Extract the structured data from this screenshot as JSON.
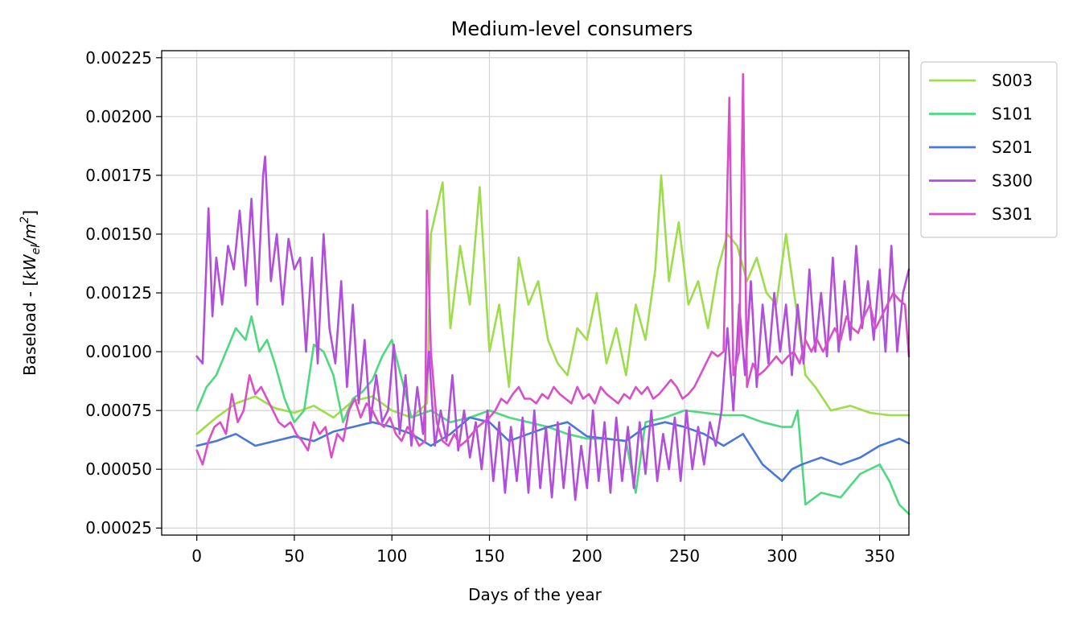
{
  "chart_data": {
    "type": "line",
    "title": "Medium-level consumers",
    "xlabel": "Days of the year",
    "ylabel_prefix": "Baseload - [",
    "ylabel_unit_main": "kW",
    "ylabel_unit_sub": "el",
    "ylabel_unit_rest": "/m",
    "ylabel_unit_sup": "2",
    "ylabel_suffix": "]",
    "xlim": [
      -18,
      365
    ],
    "ylim": [
      0.00022,
      0.00228
    ],
    "xticks": [
      0,
      50,
      100,
      150,
      200,
      250,
      300,
      350
    ],
    "xtick_labels": [
      "0",
      "50",
      "100",
      "150",
      "200",
      "250",
      "300",
      "350"
    ],
    "yticks": [
      0.00025,
      0.0005,
      0.00075,
      0.001,
      0.00125,
      0.0015,
      0.00175,
      0.002,
      0.00225
    ],
    "ytick_labels": [
      "0.00025",
      "0.00050",
      "0.00075",
      "0.00100",
      "0.00125",
      "0.00150",
      "0.00175",
      "0.00200",
      "0.00225"
    ],
    "grid": true,
    "legend_position": "outside top-right",
    "series": [
      {
        "name": "S003",
        "color": "#9edd4a",
        "x": [
          0,
          10,
          20,
          30,
          40,
          50,
          60,
          70,
          80,
          90,
          100,
          110,
          118,
          120,
          126,
          130,
          135,
          140,
          145,
          150,
          155,
          160,
          165,
          170,
          175,
          180,
          185,
          190,
          195,
          200,
          205,
          210,
          215,
          220,
          225,
          230,
          235,
          238,
          242,
          247,
          252,
          257,
          262,
          267,
          272,
          277,
          282,
          287,
          292,
          297,
          302,
          307,
          312,
          317,
          325,
          335,
          345,
          355,
          365
        ],
        "y": [
          0.00065,
          0.00072,
          0.00078,
          0.00081,
          0.00076,
          0.00074,
          0.00077,
          0.00072,
          0.00079,
          0.00081,
          0.00075,
          0.00072,
          0.00078,
          0.0015,
          0.00172,
          0.0011,
          0.00145,
          0.0012,
          0.0017,
          0.001,
          0.0012,
          0.00085,
          0.0014,
          0.0012,
          0.0013,
          0.00105,
          0.00095,
          0.0009,
          0.0011,
          0.00105,
          0.00125,
          0.00095,
          0.0011,
          0.0009,
          0.0012,
          0.00105,
          0.00135,
          0.00175,
          0.0013,
          0.00155,
          0.0012,
          0.0013,
          0.0011,
          0.00135,
          0.0015,
          0.00145,
          0.0013,
          0.0014,
          0.00125,
          0.0012,
          0.0015,
          0.0012,
          0.0009,
          0.00085,
          0.00075,
          0.00077,
          0.00074,
          0.00073,
          0.00073
        ]
      },
      {
        "name": "S101",
        "color": "#4cd97f",
        "x": [
          0,
          5,
          10,
          15,
          20,
          25,
          28,
          32,
          36,
          40,
          45,
          50,
          55,
          60,
          65,
          70,
          75,
          80,
          85,
          90,
          95,
          100,
          110,
          120,
          130,
          140,
          150,
          160,
          170,
          180,
          190,
          200,
          210,
          220,
          225,
          230,
          240,
          250,
          260,
          270,
          280,
          290,
          300,
          305,
          308,
          312,
          320,
          330,
          340,
          350,
          355,
          360,
          365
        ],
        "y": [
          0.00075,
          0.00085,
          0.0009,
          0.001,
          0.0011,
          0.00105,
          0.00115,
          0.001,
          0.00105,
          0.00095,
          0.0008,
          0.0007,
          0.00075,
          0.00103,
          0.001,
          0.0009,
          0.0007,
          0.0008,
          0.00083,
          0.00088,
          0.00098,
          0.00105,
          0.00072,
          0.00075,
          0.0007,
          0.00072,
          0.00075,
          0.00072,
          0.0007,
          0.00068,
          0.00065,
          0.00063,
          0.00063,
          0.00062,
          0.0004,
          0.0007,
          0.00072,
          0.00075,
          0.00074,
          0.00073,
          0.00073,
          0.0007,
          0.00068,
          0.00068,
          0.00075,
          0.00035,
          0.0004,
          0.00038,
          0.00048,
          0.00052,
          0.00045,
          0.00035,
          0.00031
        ]
      },
      {
        "name": "S201",
        "color": "#4a78d9",
        "x": [
          0,
          10,
          20,
          30,
          40,
          50,
          60,
          70,
          80,
          90,
          100,
          110,
          120,
          130,
          140,
          150,
          160,
          170,
          180,
          190,
          200,
          210,
          220,
          230,
          240,
          250,
          260,
          270,
          280,
          290,
          300,
          305,
          310,
          320,
          330,
          340,
          350,
          360,
          365
        ],
        "y": [
          0.0006,
          0.00062,
          0.00065,
          0.0006,
          0.00062,
          0.00064,
          0.00062,
          0.00066,
          0.00068,
          0.0007,
          0.00068,
          0.00065,
          0.0006,
          0.00065,
          0.00072,
          0.0007,
          0.00062,
          0.00065,
          0.00068,
          0.0007,
          0.00064,
          0.00063,
          0.00062,
          0.00068,
          0.0007,
          0.00068,
          0.00065,
          0.0006,
          0.00065,
          0.00052,
          0.00045,
          0.0005,
          0.00052,
          0.00055,
          0.00052,
          0.00055,
          0.0006,
          0.00063,
          0.00061
        ]
      },
      {
        "name": "S300",
        "color": "#b04fdc",
        "x": [
          0,
          3,
          6,
          8,
          10,
          13,
          16,
          19,
          22,
          25,
          28,
          31,
          34,
          35,
          38,
          41,
          44,
          47,
          50,
          53,
          56,
          59,
          62,
          65,
          68,
          71,
          74,
          77,
          80,
          83,
          86,
          89,
          92,
          95,
          98,
          101,
          104,
          107,
          110,
          113,
          116,
          119,
          122,
          125,
          128,
          131,
          134,
          137,
          140,
          143,
          146,
          149,
          152,
          155,
          158,
          161,
          164,
          167,
          170,
          173,
          176,
          179,
          182,
          185,
          188,
          191,
          194,
          197,
          200,
          203,
          206,
          209,
          212,
          215,
          218,
          221,
          224,
          227,
          230,
          233,
          236,
          239,
          242,
          245,
          248,
          251,
          254,
          257,
          260,
          263,
          266,
          269,
          272,
          275,
          278,
          281,
          284,
          287,
          290,
          293,
          296,
          299,
          302,
          305,
          308,
          311,
          314,
          317,
          320,
          323,
          326,
          329,
          332,
          335,
          338,
          341,
          344,
          347,
          350,
          353,
          356,
          359,
          362,
          365
        ],
        "y": [
          0.00098,
          0.00095,
          0.00161,
          0.00115,
          0.0014,
          0.0012,
          0.00145,
          0.00135,
          0.0016,
          0.00128,
          0.00165,
          0.0012,
          0.00175,
          0.00183,
          0.0013,
          0.0015,
          0.0012,
          0.00148,
          0.00135,
          0.0014,
          0.001,
          0.0014,
          0.00095,
          0.0015,
          0.0011,
          0.00095,
          0.0013,
          0.00085,
          0.0012,
          0.00078,
          0.00105,
          0.0007,
          0.0009,
          0.0007,
          0.00075,
          0.00103,
          0.00065,
          0.0009,
          0.0006,
          0.00085,
          0.00065,
          0.001,
          0.0006,
          0.00075,
          0.00062,
          0.0009,
          0.00058,
          0.00075,
          0.00055,
          0.0007,
          0.0005,
          0.00075,
          0.00045,
          0.0007,
          0.0004,
          0.00068,
          0.00045,
          0.00072,
          0.0004,
          0.00075,
          0.00042,
          0.00068,
          0.00038,
          0.0007,
          0.00042,
          0.00068,
          0.00037,
          0.0006,
          0.00042,
          0.00075,
          0.00045,
          0.0007,
          0.0004,
          0.00072,
          0.00045,
          0.00068,
          0.00042,
          0.0007,
          0.00048,
          0.00075,
          0.00045,
          0.00065,
          0.0005,
          0.00072,
          0.00045,
          0.00075,
          0.0005,
          0.00068,
          0.00052,
          0.0007,
          0.0006,
          0.00075,
          0.0011,
          0.00075,
          0.0012,
          0.0009,
          0.0013,
          0.00085,
          0.0012,
          0.00095,
          0.00125,
          0.001,
          0.0012,
          0.0009,
          0.0012,
          0.00095,
          0.00135,
          0.001,
          0.00125,
          0.00098,
          0.0014,
          0.001,
          0.0013,
          0.00105,
          0.00145,
          0.0011,
          0.0013,
          0.00105,
          0.00135,
          0.001,
          0.00145,
          0.001,
          0.00125,
          0.00135
        ]
      },
      {
        "name": "S301",
        "color": "#d94fc7",
        "x": [
          0,
          3,
          6,
          9,
          12,
          15,
          18,
          21,
          24,
          27,
          30,
          33,
          36,
          39,
          42,
          45,
          48,
          51,
          54,
          57,
          60,
          63,
          66,
          69,
          72,
          75,
          78,
          81,
          84,
          87,
          90,
          93,
          96,
          99,
          102,
          105,
          108,
          111,
          114,
          117,
          118,
          120,
          123,
          126,
          129,
          132,
          135,
          138,
          141,
          144,
          147,
          150,
          153,
          156,
          159,
          162,
          165,
          168,
          171,
          174,
          177,
          180,
          183,
          186,
          189,
          192,
          195,
          198,
          201,
          204,
          207,
          210,
          213,
          216,
          219,
          222,
          225,
          228,
          231,
          234,
          237,
          240,
          243,
          246,
          249,
          252,
          255,
          258,
          261,
          264,
          267,
          270,
          273,
          275,
          278,
          280,
          282,
          285,
          288,
          291,
          294,
          297,
          300,
          303,
          306,
          309,
          312,
          315,
          318,
          321,
          324,
          327,
          330,
          333,
          336,
          339,
          342,
          345,
          348,
          351,
          354,
          357,
          360,
          363,
          365
        ],
        "y": [
          0.00058,
          0.00052,
          0.00062,
          0.00068,
          0.0007,
          0.00065,
          0.00082,
          0.0007,
          0.00075,
          0.0009,
          0.00082,
          0.00085,
          0.0008,
          0.00075,
          0.0007,
          0.00068,
          0.0007,
          0.00065,
          0.00062,
          0.00058,
          0.0007,
          0.00065,
          0.00068,
          0.00055,
          0.00065,
          0.00062,
          0.00075,
          0.0008,
          0.00072,
          0.00078,
          0.00075,
          0.0007,
          0.00068,
          0.00072,
          0.00065,
          0.00062,
          0.00068,
          0.00065,
          0.0006,
          0.00062,
          0.0016,
          0.001,
          0.0007,
          0.00062,
          0.0006,
          0.00065,
          0.0006,
          0.00062,
          0.00065,
          0.00068,
          0.0007,
          0.00072,
          0.00075,
          0.0008,
          0.00078,
          0.00082,
          0.00085,
          0.0008,
          0.0008,
          0.00078,
          0.00082,
          0.0008,
          0.00085,
          0.00082,
          0.0008,
          0.00078,
          0.00085,
          0.0008,
          0.00082,
          0.00078,
          0.00085,
          0.00082,
          0.0008,
          0.00078,
          0.00082,
          0.0008,
          0.00085,
          0.00082,
          0.00085,
          0.0008,
          0.00082,
          0.00085,
          0.00088,
          0.00085,
          0.0008,
          0.00082,
          0.00085,
          0.0009,
          0.00095,
          0.001,
          0.00098,
          0.001,
          0.00208,
          0.0009,
          0.001,
          0.00218,
          0.00085,
          0.00095,
          0.0009,
          0.00092,
          0.00095,
          0.00098,
          0.00095,
          0.00098,
          0.001,
          0.00095,
          0.00105,
          0.001,
          0.00105,
          0.001,
          0.00105,
          0.0011,
          0.00105,
          0.00115,
          0.0011,
          0.00108,
          0.00115,
          0.0012,
          0.0011,
          0.00115,
          0.0012,
          0.00125,
          0.00122,
          0.0012,
          0.00098
        ]
      }
    ]
  }
}
